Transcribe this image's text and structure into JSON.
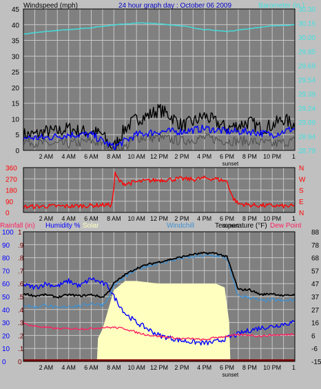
{
  "colors": {
    "background": "#c0c0c0",
    "plot_bg": "#808080",
    "grid": "#c8c8c8",
    "frame": "#000000",
    "wind": "#000000",
    "gust": "#505050",
    "avg_wind": "#0000ff",
    "barometer": "#40e0e0",
    "direction": "#ff0000",
    "humidity": "#0000ff",
    "solar": "#ffffc0",
    "windchill": "#4090d0",
    "temperature": "#000000",
    "dew_point": "#ff2060",
    "rainfall": "#800000"
  },
  "header": {
    "windspeed_label": "Windspeed (mph)",
    "title": "24 hour graph day : October 06 2009",
    "barometer_label": "Barometer (in.)"
  },
  "legend": {
    "rainfall": "Rainfall (in)",
    "humidity": "Humidity %",
    "solar": "Solar",
    "windchill": "Windchill",
    "temperature": "Temperature (°F)",
    "dew_point": "Dew Point"
  },
  "chart_data": [
    {
      "type": "line",
      "panel": "wind",
      "x_unit": "hour of day",
      "xlim": [
        0,
        24
      ],
      "x_tick_labels": [
        "2 AM",
        "4 AM",
        "6 AM",
        "8 AM",
        "10 AM",
        "12 PM",
        "2 PM",
        "4 PM",
        "6 PM",
        "8 PM",
        "10 PM",
        "1"
      ],
      "x_tick_hours": [
        2,
        4,
        6,
        8,
        10,
        12,
        14,
        16,
        18,
        20,
        22,
        23.9
      ],
      "sunset_label": "sunset",
      "sunset_hour": 18.3,
      "ylabel_left": "Windspeed (mph)",
      "ylim_left": [
        0,
        45
      ],
      "y_ticks_left": [
        "0",
        "5",
        "10",
        "15",
        "20",
        "25",
        "30",
        "35",
        "40",
        "45"
      ],
      "ylabel_right": "Barometer (in.)",
      "ylim_right": [
        28.79,
        30.3
      ],
      "y_ticks_right": [
        "28.79",
        "28.94",
        "29.09",
        "29.24",
        "29.39",
        "29.54",
        "29.69",
        "29.85",
        "30.00",
        "30.15",
        "30.30"
      ],
      "grid": true,
      "series": [
        {
          "name": "Windspeed",
          "axis": "left",
          "style": "wind",
          "x": [
            0,
            1,
            2,
            3,
            4,
            5,
            6,
            7,
            7.5,
            8,
            8.5,
            9,
            10,
            11,
            12,
            13,
            14,
            15,
            16,
            17,
            18,
            19,
            20,
            21,
            22,
            23,
            24
          ],
          "y": [
            5,
            5,
            6,
            6,
            7,
            6,
            6,
            5,
            2,
            1,
            4,
            7,
            10,
            11,
            13,
            11,
            8,
            9,
            11,
            9,
            7,
            8,
            9,
            7,
            8,
            10,
            8
          ]
        },
        {
          "name": "Gust",
          "axis": "left",
          "style": "gust",
          "x": [
            0,
            2,
            4,
            6,
            7,
            8,
            9,
            10,
            12,
            14,
            16,
            18,
            20,
            22,
            24
          ],
          "y": [
            3,
            2,
            2,
            3,
            2,
            0,
            1,
            4,
            4,
            3,
            4,
            3,
            3,
            2,
            3
          ]
        },
        {
          "name": "Average wind",
          "axis": "left",
          "style": "avg_wind",
          "x": [
            0,
            2,
            4,
            6,
            7,
            8,
            9,
            10,
            12,
            14,
            16,
            18,
            20,
            22,
            24
          ],
          "y": [
            4,
            4,
            5,
            5,
            3,
            1,
            3,
            5,
            6,
            6,
            7,
            6,
            6,
            5,
            7
          ]
        },
        {
          "name": "Barometer",
          "axis": "right",
          "style": "barometer",
          "x": [
            0,
            2,
            4,
            6,
            8,
            10,
            11,
            12,
            14,
            16,
            18,
            20,
            22,
            24
          ],
          "y": [
            30.03,
            30.06,
            30.08,
            30.1,
            30.13,
            30.15,
            30.15,
            30.14,
            30.12,
            30.08,
            30.06,
            30.09,
            30.12,
            30.13
          ]
        }
      ]
    },
    {
      "type": "line",
      "panel": "direction",
      "xlim": [
        0,
        24
      ],
      "ylim": [
        0,
        360
      ],
      "y_ticks_left": [
        "0",
        "90",
        "180",
        "270",
        "360"
      ],
      "y_ticks_right": [
        "N",
        "E",
        "S",
        "W",
        "N"
      ],
      "grid": true,
      "series": [
        {
          "name": "Wind direction",
          "style": "direction",
          "x": [
            0,
            2,
            4,
            6,
            7,
            7.8,
            8,
            8.1,
            8.3,
            8.5,
            9,
            10,
            11,
            12,
            13,
            14,
            15,
            16,
            17,
            18,
            18.5,
            19,
            20,
            21,
            22,
            23,
            24
          ],
          "y": [
            45,
            50,
            50,
            55,
            60,
            60,
            200,
            310,
            280,
            250,
            230,
            245,
            255,
            260,
            265,
            270,
            265,
            275,
            270,
            250,
            120,
            70,
            60,
            55,
            55,
            50,
            50
          ]
        }
      ]
    },
    {
      "type": "line",
      "panel": "temperature",
      "xlim": [
        0,
        24
      ],
      "ylabel_left": "Humidity %",
      "ylim_left": [
        0,
        100
      ],
      "y_ticks_left": [
        "0",
        "10",
        "20",
        "30",
        "40",
        "50",
        "60",
        "70",
        "80",
        "90",
        "100"
      ],
      "ylabel_inner": "Rainfall (in)",
      "ylim_inner": [
        0,
        1.0
      ],
      "y_ticks_inner": [
        "0",
        ".1",
        ".2",
        ".3",
        ".4",
        ".5",
        ".6",
        ".7",
        ".8",
        ".9",
        "1"
      ],
      "ylabel_right": "Temperature (°F)",
      "ylim_right": [
        -15,
        88
      ],
      "y_ticks_right": [
        "-15",
        "-6",
        "6",
        "16",
        "27",
        "37",
        "47",
        "57",
        "68",
        "78",
        "88"
      ],
      "grid": true,
      "series": [
        {
          "name": "Solar",
          "axis": "left",
          "style": "solar",
          "fill": true,
          "x": [
            0,
            6.5,
            6.6,
            7.0,
            7.5,
            8.0,
            9.0,
            10,
            12,
            14,
            16,
            17,
            17.8,
            18.2,
            18.3,
            24
          ],
          "y": [
            0,
            0,
            18,
            25,
            40,
            55,
            62,
            62,
            60,
            60,
            60,
            60,
            57,
            30,
            0,
            0
          ]
        },
        {
          "name": "Humidity",
          "axis": "left",
          "style": "humidity",
          "x": [
            0,
            1,
            2,
            3,
            4,
            5,
            6,
            7,
            7.5,
            8,
            9,
            10,
            11,
            12,
            13,
            14,
            15,
            16,
            17,
            18,
            19,
            20,
            21,
            22,
            23,
            24
          ],
          "y": [
            59,
            57,
            60,
            58,
            62,
            58,
            64,
            60,
            58,
            50,
            37,
            30,
            25,
            20,
            18,
            16,
            15,
            14,
            15,
            18,
            21,
            24,
            26,
            27,
            29,
            30
          ]
        },
        {
          "name": "Windchill",
          "axis": "right",
          "style": "windchill",
          "x": [
            0,
            1,
            2,
            3,
            4,
            5,
            6,
            7,
            7.5,
            8,
            9,
            10,
            11,
            12,
            13,
            14,
            15,
            16,
            17,
            18,
            18.5,
            19,
            20,
            21,
            22,
            23,
            24
          ],
          "y": [
            30,
            28,
            30,
            27,
            29,
            29,
            31,
            30,
            35,
            45,
            52,
            58,
            61,
            63,
            65,
            67,
            68,
            69,
            69,
            67,
            50,
            37,
            36,
            33,
            34,
            33,
            34
          ]
        },
        {
          "name": "Temperature",
          "axis": "right",
          "style": "temperature",
          "x": [
            0,
            1,
            2,
            3,
            4,
            5,
            6,
            7,
            7.5,
            8,
            9,
            10,
            11,
            12,
            13,
            14,
            15,
            16,
            17,
            18,
            18.5,
            19,
            20,
            21,
            22,
            23,
            24
          ],
          "y": [
            39,
            37,
            38,
            36,
            38,
            37,
            38,
            36,
            40,
            47,
            54,
            59,
            62,
            64,
            66,
            68,
            70,
            71,
            71,
            68,
            55,
            42,
            42,
            38,
            39,
            37,
            38
          ]
        },
        {
          "name": "Dew Point",
          "axis": "right",
          "style": "dew_point",
          "x": [
            0,
            1,
            2,
            3,
            4,
            5,
            6,
            7,
            8,
            9,
            10,
            11,
            12,
            13,
            14,
            15,
            16,
            17,
            18,
            19,
            20,
            21,
            22,
            23,
            24
          ],
          "y": [
            15,
            13,
            12,
            11,
            11,
            11,
            11,
            12,
            12,
            11,
            8,
            6,
            5,
            4,
            3,
            3,
            2,
            4,
            5,
            6,
            6,
            5,
            6,
            6,
            7
          ]
        },
        {
          "name": "Rainfall",
          "axis": "inner",
          "style": "rainfall",
          "x": [
            0,
            24
          ],
          "y": [
            0,
            0
          ]
        }
      ]
    }
  ]
}
